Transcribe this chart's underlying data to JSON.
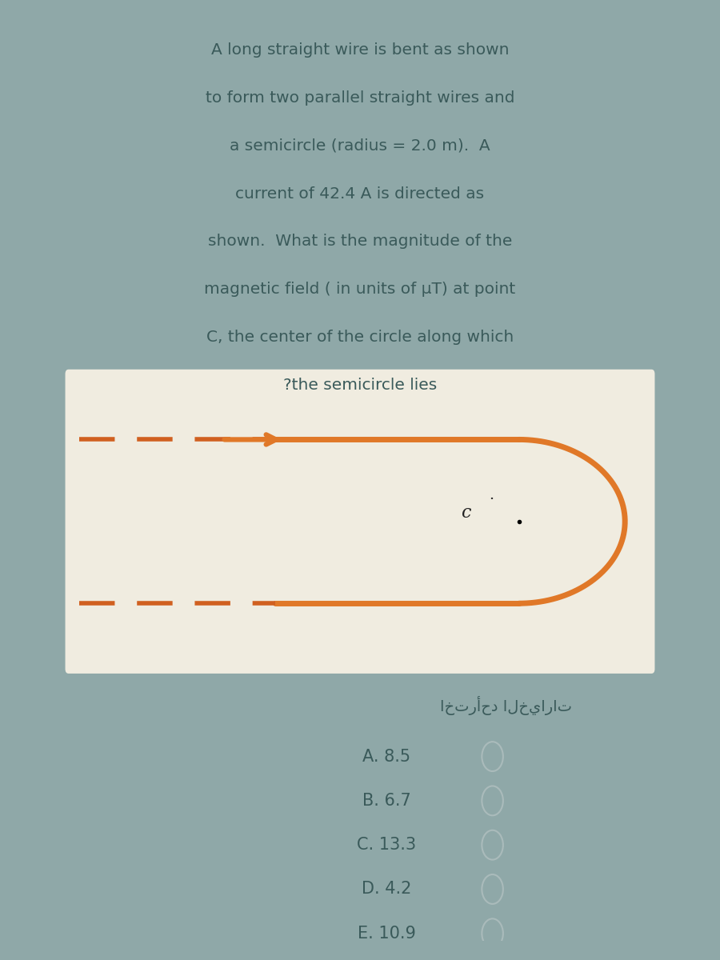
{
  "bg_outer": "#8fa8a8",
  "bg_card": "#b8d0d0",
  "bg_diagram": "#f0ece0",
  "text_color": "#3a5a5a",
  "wire_color": "#e07828",
  "dash_color": "#d06020",
  "question_lines": [
    "A long straight wire is bent as shown",
    "to form two parallel straight wires and",
    "a semicircle (radius = 2.0 m).  A",
    "current of 42.4 A is directed as",
    "shown.  What is the magnitude of the",
    "magnetic field ( in units of μT) at point",
    "C, the center of the circle along which",
    "?the semicircle lies"
  ],
  "arabic_label": "اخترأحد الخيارات",
  "choices": [
    "A. 8.5",
    "B. 6.7",
    "C. 13.3",
    "D. 4.2",
    "E. 10.9"
  ],
  "c_label": "c",
  "wire_linewidth": 5.0,
  "dash_linewidth": 4.0,
  "title_fontsize": 14.5,
  "choice_fontsize": 15,
  "arabic_fontsize": 14
}
